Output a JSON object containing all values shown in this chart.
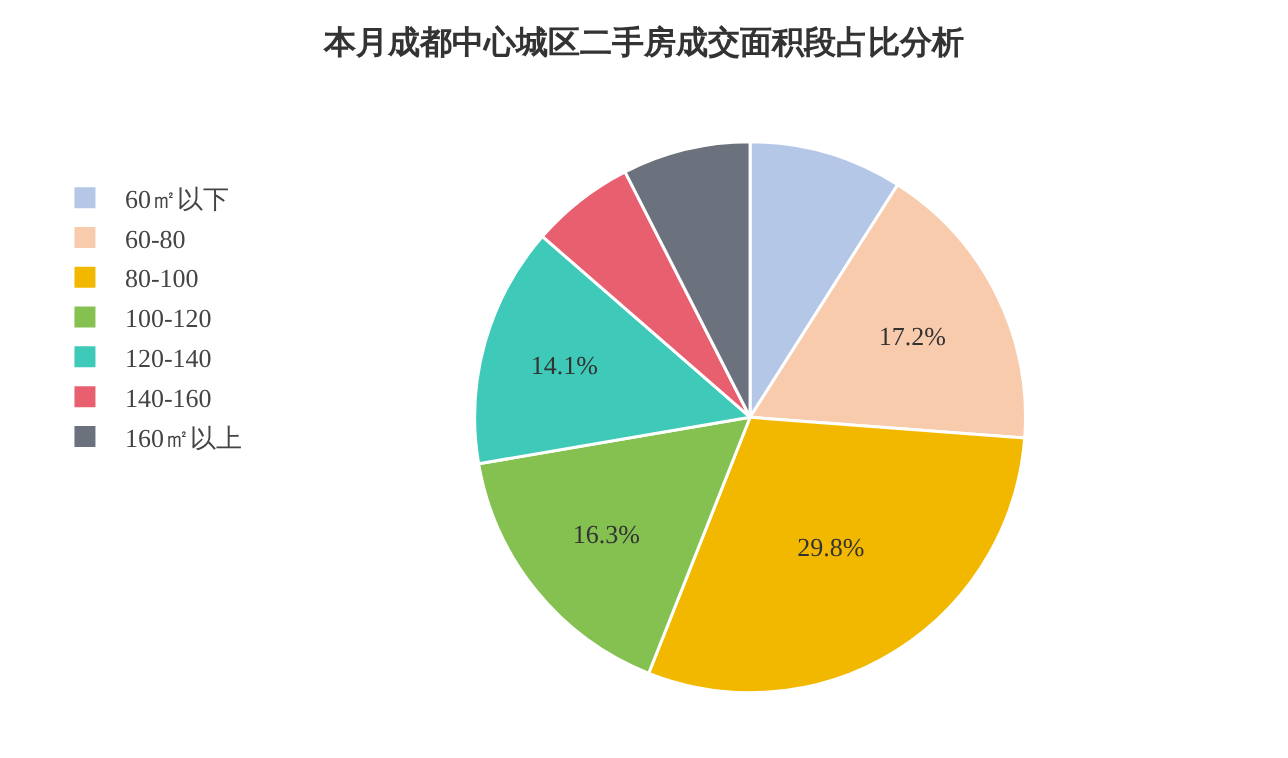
{
  "chart_data": {
    "type": "pie",
    "title": "本月成都中心城区二手房成交面积段占比分析",
    "categories": [
      "60㎡以下",
      "60-80",
      "80-100",
      "100-120",
      "120-140",
      "140-160",
      "160㎡以上"
    ],
    "values": [
      9.0,
      17.2,
      29.8,
      16.3,
      14.1,
      6.1,
      7.5
    ],
    "value_labels": [
      null,
      "17.2%",
      "29.8%",
      "16.3%",
      "14.1%",
      null,
      null
    ],
    "colors": [
      "#b4c7e7",
      "#f8cbad",
      "#f2b800",
      "#84c150",
      "#3ec9b9",
      "#e8606f",
      "#6b717d"
    ],
    "legend": "left"
  }
}
